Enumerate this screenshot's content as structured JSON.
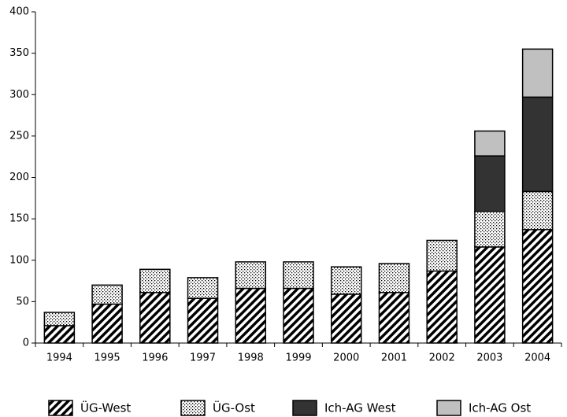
{
  "chart_data": {
    "type": "stacked-bar",
    "categories": [
      "1994",
      "1995",
      "1996",
      "1997",
      "1998",
      "1999",
      "2000",
      "2001",
      "2002",
      "2003",
      "2004"
    ],
    "series": [
      {
        "name": "ÜG-West",
        "color": "#000000",
        "pattern": "hatch",
        "values": [
          21,
          47,
          61,
          54,
          66,
          66,
          59,
          61,
          87,
          116,
          137
        ]
      },
      {
        "name": "ÜG-Ost",
        "color": "#000000",
        "pattern": "dots",
        "values": [
          16,
          23,
          28,
          25,
          32,
          32,
          33,
          35,
          37,
          43,
          46
        ]
      },
      {
        "name": "Ich-AG West",
        "color": "#333333",
        "pattern": "solid",
        "values": [
          null,
          null,
          null,
          null,
          null,
          null,
          null,
          null,
          null,
          67,
          114
        ]
      },
      {
        "name": "Ich-AG Ost",
        "color": "#c0c0c0",
        "pattern": "solid",
        "values": [
          null,
          null,
          null,
          null,
          null,
          null,
          null,
          null,
          null,
          30,
          58
        ]
      }
    ],
    "ylim": [
      0,
      400
    ],
    "yticks": [
      0,
      50,
      100,
      150,
      200,
      250,
      300,
      350,
      400
    ],
    "grid": false,
    "legend": "bottom"
  }
}
